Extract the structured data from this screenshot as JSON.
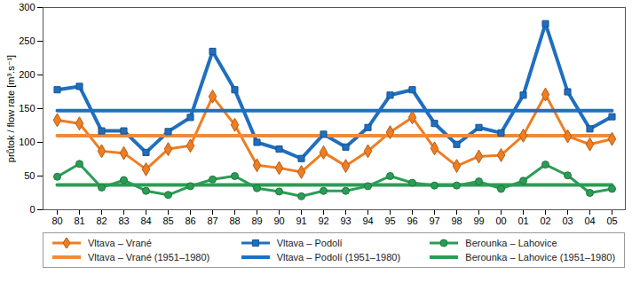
{
  "chart_data": {
    "type": "line",
    "y_label": "průtok / flow rate [m³.s⁻¹]",
    "categories": [
      "80",
      "81",
      "82",
      "83",
      "84",
      "85",
      "86",
      "87",
      "88",
      "89",
      "90",
      "91",
      "92",
      "93",
      "94",
      "95",
      "96",
      "97",
      "98",
      "99",
      "00",
      "01",
      "02",
      "03",
      "04",
      "05"
    ],
    "ylim": [
      0,
      300
    ],
    "yticks": [
      0,
      50,
      100,
      150,
      200,
      250,
      300
    ],
    "grid": false,
    "legend": "bottom",
    "series": [
      {
        "name": "Vltava – Vrané",
        "color": "#ef7d22",
        "marker": "diamond",
        "line_style": "solid",
        "values": [
          133,
          128,
          87,
          84,
          60,
          90,
          95,
          168,
          126,
          66,
          62,
          56,
          85,
          65,
          87,
          115,
          137,
          91,
          65,
          79,
          81,
          110,
          171,
          109,
          97,
          105
        ]
      },
      {
        "name": "Vltava – Podolí",
        "color": "#1f6fbf",
        "marker": "square",
        "line_style": "solid",
        "values": [
          178,
          183,
          117,
          117,
          85,
          116,
          137,
          235,
          178,
          100,
          90,
          76,
          112,
          93,
          122,
          170,
          178,
          128,
          97,
          122,
          114,
          170,
          276,
          175,
          120,
          138
        ]
      },
      {
        "name": "Berounka – Lahovice",
        "color": "#2a9d55",
        "marker": "circle",
        "line_style": "solid",
        "values": [
          49,
          68,
          33,
          44,
          28,
          22,
          35,
          45,
          50,
          32,
          27,
          20,
          28,
          28,
          35,
          50,
          40,
          36,
          36,
          42,
          31,
          43,
          67,
          51,
          25,
          31
        ]
      },
      {
        "name": "Vltava – Vrané (1951–1980)",
        "color": "#f08a3a",
        "marker": "none",
        "line_style": "solid",
        "values": [
          110,
          110,
          110,
          110,
          110,
          110,
          110,
          110,
          110,
          110,
          110,
          110,
          110,
          110,
          110,
          110,
          110,
          110,
          110,
          110,
          110,
          110,
          110,
          110,
          110,
          110
        ]
      },
      {
        "name": "Vltava – Podolí (1951–1980)",
        "color": "#1f6fbf",
        "marker": "none",
        "line_style": "solid",
        "values": [
          147,
          147,
          147,
          147,
          147,
          147,
          147,
          147,
          147,
          147,
          147,
          147,
          147,
          147,
          147,
          147,
          147,
          147,
          147,
          147,
          147,
          147,
          147,
          147,
          147,
          147
        ]
      },
      {
        "name": "Berounka – Lahovice (1951–1980)",
        "color": "#2a9d55",
        "marker": "none",
        "line_style": "solid",
        "values": [
          37,
          37,
          37,
          37,
          37,
          37,
          37,
          37,
          37,
          37,
          37,
          37,
          37,
          37,
          37,
          37,
          37,
          37,
          37,
          37,
          37,
          37,
          37,
          37,
          37,
          37
        ]
      }
    ]
  }
}
